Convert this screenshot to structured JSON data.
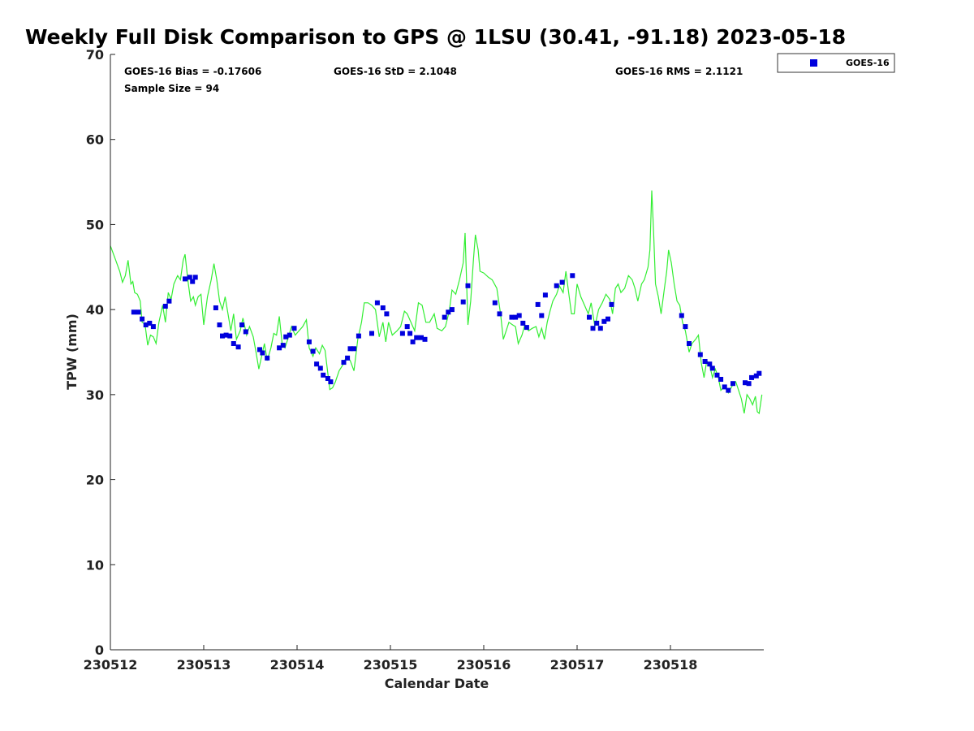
{
  "chart_data": {
    "type": "scatter",
    "title": "Weekly Full Disk Comparison to GPS @ 1LSU (30.41, -91.18) 2023-05-18",
    "xlabel": "Calendar Date",
    "ylabel": "TPW (mm)",
    "xlim": [
      0,
      7
    ],
    "ylim": [
      0,
      70
    ],
    "yticks": [
      0,
      10,
      20,
      30,
      40,
      50,
      60,
      70
    ],
    "xticks": [
      {
        "value": 0,
        "label": "230512"
      },
      {
        "value": 1,
        "label": "230513"
      },
      {
        "value": 2,
        "label": "230514"
      },
      {
        "value": 3,
        "label": "230515"
      },
      {
        "value": 4,
        "label": "230516"
      },
      {
        "value": 5,
        "label": "230517"
      },
      {
        "value": 6,
        "label": "230518"
      }
    ],
    "stats": {
      "bias": "GOES-16 Bias = -0.17606",
      "std": "GOES-16 StD = 2.1048",
      "rms": "GOES-16 RMS = 2.1121",
      "sample": "Sample Size = 94"
    },
    "legend": [
      {
        "name": "GOES-16",
        "color": "#0000dd",
        "marker": "square"
      }
    ],
    "series": [
      {
        "name": "GOES-16",
        "kind": "points",
        "color": "#0000dd",
        "points": [
          [
            0.25,
            39.7
          ],
          [
            0.3,
            39.7
          ],
          [
            0.34,
            38.9
          ],
          [
            0.38,
            38.2
          ],
          [
            0.42,
            38.4
          ],
          [
            0.46,
            38.0
          ],
          [
            0.59,
            40.4
          ],
          [
            0.63,
            41.0
          ],
          [
            0.8,
            43.6
          ],
          [
            0.85,
            43.8
          ],
          [
            0.88,
            43.3
          ],
          [
            0.91,
            43.8
          ],
          [
            1.13,
            40.2
          ],
          [
            1.17,
            38.2
          ],
          [
            1.2,
            36.9
          ],
          [
            1.24,
            37.0
          ],
          [
            1.28,
            36.9
          ],
          [
            1.32,
            36.0
          ],
          [
            1.37,
            35.6
          ],
          [
            1.41,
            38.2
          ],
          [
            1.45,
            37.4
          ],
          [
            1.6,
            35.3
          ],
          [
            1.63,
            34.9
          ],
          [
            1.68,
            34.3
          ],
          [
            1.81,
            35.5
          ],
          [
            1.85,
            35.8
          ],
          [
            1.88,
            36.8
          ],
          [
            1.92,
            37.0
          ],
          [
            1.97,
            37.8
          ],
          [
            2.13,
            36.2
          ],
          [
            2.17,
            35.1
          ],
          [
            2.21,
            33.6
          ],
          [
            2.25,
            33.1
          ],
          [
            2.28,
            32.3
          ],
          [
            2.33,
            31.9
          ],
          [
            2.36,
            31.5
          ],
          [
            2.5,
            33.8
          ],
          [
            2.54,
            34.3
          ],
          [
            2.57,
            35.4
          ],
          [
            2.61,
            35.4
          ],
          [
            2.66,
            36.9
          ],
          [
            2.8,
            37.2
          ],
          [
            2.86,
            40.8
          ],
          [
            2.92,
            40.2
          ],
          [
            2.96,
            39.5
          ],
          [
            3.13,
            37.2
          ],
          [
            3.18,
            38.0
          ],
          [
            3.21,
            37.2
          ],
          [
            3.24,
            36.2
          ],
          [
            3.28,
            36.7
          ],
          [
            3.33,
            36.7
          ],
          [
            3.37,
            36.5
          ],
          [
            3.58,
            39.1
          ],
          [
            3.62,
            39.7
          ],
          [
            3.66,
            40.0
          ],
          [
            3.78,
            40.9
          ],
          [
            3.83,
            42.8
          ],
          [
            4.12,
            40.8
          ],
          [
            4.17,
            39.5
          ],
          [
            4.3,
            39.1
          ],
          [
            4.34,
            39.1
          ],
          [
            4.38,
            39.3
          ],
          [
            4.42,
            38.4
          ],
          [
            4.46,
            37.9
          ],
          [
            4.58,
            40.6
          ],
          [
            4.62,
            39.3
          ],
          [
            4.66,
            41.7
          ],
          [
            4.78,
            42.8
          ],
          [
            4.84,
            43.2
          ],
          [
            4.95,
            44.0
          ],
          [
            5.13,
            39.1
          ],
          [
            5.17,
            37.8
          ],
          [
            5.21,
            38.4
          ],
          [
            5.25,
            37.8
          ],
          [
            5.29,
            38.6
          ],
          [
            5.33,
            38.9
          ],
          [
            5.37,
            40.6
          ],
          [
            6.12,
            39.3
          ],
          [
            6.16,
            38.0
          ],
          [
            6.2,
            36.0
          ],
          [
            6.32,
            34.7
          ],
          [
            6.37,
            33.9
          ],
          [
            6.42,
            33.6
          ],
          [
            6.45,
            33.1
          ],
          [
            6.5,
            32.3
          ],
          [
            6.54,
            31.8
          ],
          [
            6.58,
            30.9
          ],
          [
            6.62,
            30.5
          ],
          [
            6.67,
            31.3
          ],
          [
            6.8,
            31.4
          ],
          [
            6.84,
            31.3
          ],
          [
            6.87,
            32.0
          ],
          [
            6.92,
            32.2
          ],
          [
            6.95,
            32.5
          ]
        ]
      },
      {
        "name": "GPS",
        "kind": "line",
        "color": "#33ee33",
        "points": [
          [
            0.0,
            47.5
          ],
          [
            0.05,
            46.0
          ],
          [
            0.1,
            44.5
          ],
          [
            0.13,
            43.2
          ],
          [
            0.16,
            44.0
          ],
          [
            0.19,
            45.8
          ],
          [
            0.22,
            43.0
          ],
          [
            0.24,
            43.3
          ],
          [
            0.26,
            42.0
          ],
          [
            0.29,
            41.8
          ],
          [
            0.32,
            41.0
          ],
          [
            0.34,
            38.5
          ],
          [
            0.37,
            38.3
          ],
          [
            0.4,
            35.8
          ],
          [
            0.43,
            37.0
          ],
          [
            0.46,
            36.8
          ],
          [
            0.49,
            36.0
          ],
          [
            0.52,
            38.5
          ],
          [
            0.56,
            40.5
          ],
          [
            0.59,
            38.5
          ],
          [
            0.62,
            42.0
          ],
          [
            0.65,
            41.2
          ],
          [
            0.68,
            43.0
          ],
          [
            0.72,
            44.0
          ],
          [
            0.75,
            43.5
          ],
          [
            0.78,
            45.8
          ],
          [
            0.8,
            46.5
          ],
          [
            0.83,
            43.5
          ],
          [
            0.86,
            41.0
          ],
          [
            0.89,
            41.5
          ],
          [
            0.91,
            40.5
          ],
          [
            0.94,
            41.5
          ],
          [
            0.97,
            41.8
          ],
          [
            1.0,
            38.2
          ],
          [
            1.04,
            41.5
          ],
          [
            1.08,
            43.5
          ],
          [
            1.11,
            45.4
          ],
          [
            1.14,
            43.5
          ],
          [
            1.17,
            41.0
          ],
          [
            1.2,
            40.0
          ],
          [
            1.23,
            41.5
          ],
          [
            1.26,
            39.5
          ],
          [
            1.29,
            37.5
          ],
          [
            1.32,
            39.5
          ],
          [
            1.35,
            36.5
          ],
          [
            1.39,
            37.5
          ],
          [
            1.42,
            39.0
          ],
          [
            1.46,
            37.0
          ],
          [
            1.49,
            38.0
          ],
          [
            1.53,
            36.8
          ],
          [
            1.56,
            35.0
          ],
          [
            1.59,
            33.0
          ],
          [
            1.62,
            34.5
          ],
          [
            1.65,
            36.0
          ],
          [
            1.68,
            34.0
          ],
          [
            1.72,
            35.5
          ],
          [
            1.75,
            37.2
          ],
          [
            1.78,
            37.0
          ],
          [
            1.81,
            39.2
          ],
          [
            1.84,
            36.0
          ],
          [
            1.87,
            35.5
          ],
          [
            1.9,
            36.5
          ],
          [
            1.94,
            38.0
          ],
          [
            1.98,
            37.0
          ],
          [
            2.02,
            37.5
          ],
          [
            2.06,
            38.0
          ],
          [
            2.1,
            38.8
          ],
          [
            2.13,
            35.5
          ],
          [
            2.17,
            34.5
          ],
          [
            2.2,
            35.5
          ],
          [
            2.24,
            34.8
          ],
          [
            2.27,
            35.8
          ],
          [
            2.3,
            35.2
          ],
          [
            2.33,
            32.5
          ],
          [
            2.35,
            30.6
          ],
          [
            2.38,
            30.8
          ],
          [
            2.41,
            31.5
          ],
          [
            2.45,
            32.8
          ],
          [
            2.49,
            33.5
          ],
          [
            2.53,
            34.5
          ],
          [
            2.57,
            34.0
          ],
          [
            2.61,
            32.8
          ],
          [
            2.65,
            36.5
          ],
          [
            2.69,
            38.5
          ],
          [
            2.72,
            40.8
          ],
          [
            2.76,
            40.8
          ],
          [
            2.8,
            40.5
          ],
          [
            2.84,
            40.0
          ],
          [
            2.88,
            36.8
          ],
          [
            2.92,
            38.5
          ],
          [
            2.95,
            36.2
          ],
          [
            2.98,
            38.5
          ],
          [
            3.02,
            37.0
          ],
          [
            3.07,
            37.5
          ],
          [
            3.11,
            38.0
          ],
          [
            3.15,
            39.8
          ],
          [
            3.18,
            39.5
          ],
          [
            3.22,
            38.5
          ],
          [
            3.26,
            37.5
          ],
          [
            3.3,
            40.8
          ],
          [
            3.34,
            40.5
          ],
          [
            3.38,
            38.5
          ],
          [
            3.42,
            38.5
          ],
          [
            3.47,
            39.5
          ],
          [
            3.5,
            37.8
          ],
          [
            3.55,
            37.5
          ],
          [
            3.59,
            38.0
          ],
          [
            3.63,
            39.8
          ],
          [
            3.66,
            42.3
          ],
          [
            3.7,
            41.8
          ],
          [
            3.74,
            43.5
          ],
          [
            3.78,
            45.5
          ],
          [
            3.8,
            49.0
          ],
          [
            3.83,
            38.2
          ],
          [
            3.86,
            41.0
          ],
          [
            3.89,
            46.0
          ],
          [
            3.91,
            48.8
          ],
          [
            3.94,
            47.0
          ],
          [
            3.96,
            44.5
          ],
          [
            4.0,
            44.3
          ],
          [
            4.05,
            43.8
          ],
          [
            4.09,
            43.5
          ],
          [
            4.14,
            42.5
          ],
          [
            4.18,
            39.5
          ],
          [
            4.21,
            36.5
          ],
          [
            4.24,
            37.5
          ],
          [
            4.27,
            38.5
          ],
          [
            4.31,
            38.2
          ],
          [
            4.34,
            38.0
          ],
          [
            4.37,
            36.0
          ],
          [
            4.41,
            37.0
          ],
          [
            4.44,
            38.2
          ],
          [
            4.48,
            37.5
          ],
          [
            4.52,
            37.8
          ],
          [
            4.56,
            38.0
          ],
          [
            4.59,
            36.8
          ],
          [
            4.62,
            37.8
          ],
          [
            4.65,
            36.5
          ],
          [
            4.68,
            38.5
          ],
          [
            4.71,
            39.8
          ],
          [
            4.74,
            41.0
          ],
          [
            4.78,
            41.8
          ],
          [
            4.81,
            42.8
          ],
          [
            4.85,
            42.0
          ],
          [
            4.88,
            44.5
          ],
          [
            4.91,
            42.0
          ],
          [
            4.94,
            39.5
          ],
          [
            4.97,
            39.5
          ],
          [
            5.0,
            43.0
          ],
          [
            5.04,
            41.5
          ],
          [
            5.08,
            40.5
          ],
          [
            5.12,
            39.5
          ],
          [
            5.15,
            40.8
          ],
          [
            5.19,
            38.0
          ],
          [
            5.23,
            40.0
          ],
          [
            5.27,
            40.8
          ],
          [
            5.31,
            41.8
          ],
          [
            5.35,
            41.2
          ],
          [
            5.38,
            39.5
          ],
          [
            5.41,
            42.5
          ],
          [
            5.44,
            43.0
          ],
          [
            5.47,
            42.0
          ],
          [
            5.51,
            42.5
          ],
          [
            5.55,
            44.0
          ],
          [
            5.59,
            43.5
          ],
          [
            5.62,
            42.5
          ],
          [
            5.65,
            41.0
          ],
          [
            5.69,
            43.0
          ],
          [
            5.72,
            43.5
          ],
          [
            5.76,
            45.0
          ],
          [
            5.78,
            47.0
          ],
          [
            5.8,
            54.0
          ],
          [
            5.82,
            49.0
          ],
          [
            5.84,
            43.0
          ],
          [
            5.87,
            41.5
          ],
          [
            5.9,
            39.5
          ],
          [
            5.93,
            42.0
          ],
          [
            5.96,
            44.5
          ],
          [
            5.98,
            47.0
          ],
          [
            6.01,
            45.5
          ],
          [
            6.04,
            43.0
          ],
          [
            6.07,
            41.0
          ],
          [
            6.1,
            40.5
          ],
          [
            6.13,
            38.5
          ],
          [
            6.16,
            37.5
          ],
          [
            6.2,
            35.0
          ],
          [
            6.23,
            36.0
          ],
          [
            6.27,
            36.5
          ],
          [
            6.3,
            37.0
          ],
          [
            6.33,
            33.8
          ],
          [
            6.36,
            32.0
          ],
          [
            6.39,
            34.0
          ],
          [
            6.42,
            33.5
          ],
          [
            6.45,
            32.0
          ],
          [
            6.48,
            33.0
          ],
          [
            6.51,
            32.2
          ],
          [
            6.54,
            30.5
          ],
          [
            6.58,
            31.0
          ],
          [
            6.62,
            30.2
          ],
          [
            6.66,
            31.0
          ],
          [
            6.7,
            31.5
          ],
          [
            6.73,
            30.5
          ],
          [
            6.76,
            29.5
          ],
          [
            6.79,
            27.8
          ],
          [
            6.82,
            30.0
          ],
          [
            6.85,
            29.5
          ],
          [
            6.88,
            28.8
          ],
          [
            6.91,
            29.8
          ],
          [
            6.93,
            28.0
          ],
          [
            6.95,
            27.8
          ],
          [
            6.98,
            30.0
          ]
        ]
      }
    ]
  }
}
